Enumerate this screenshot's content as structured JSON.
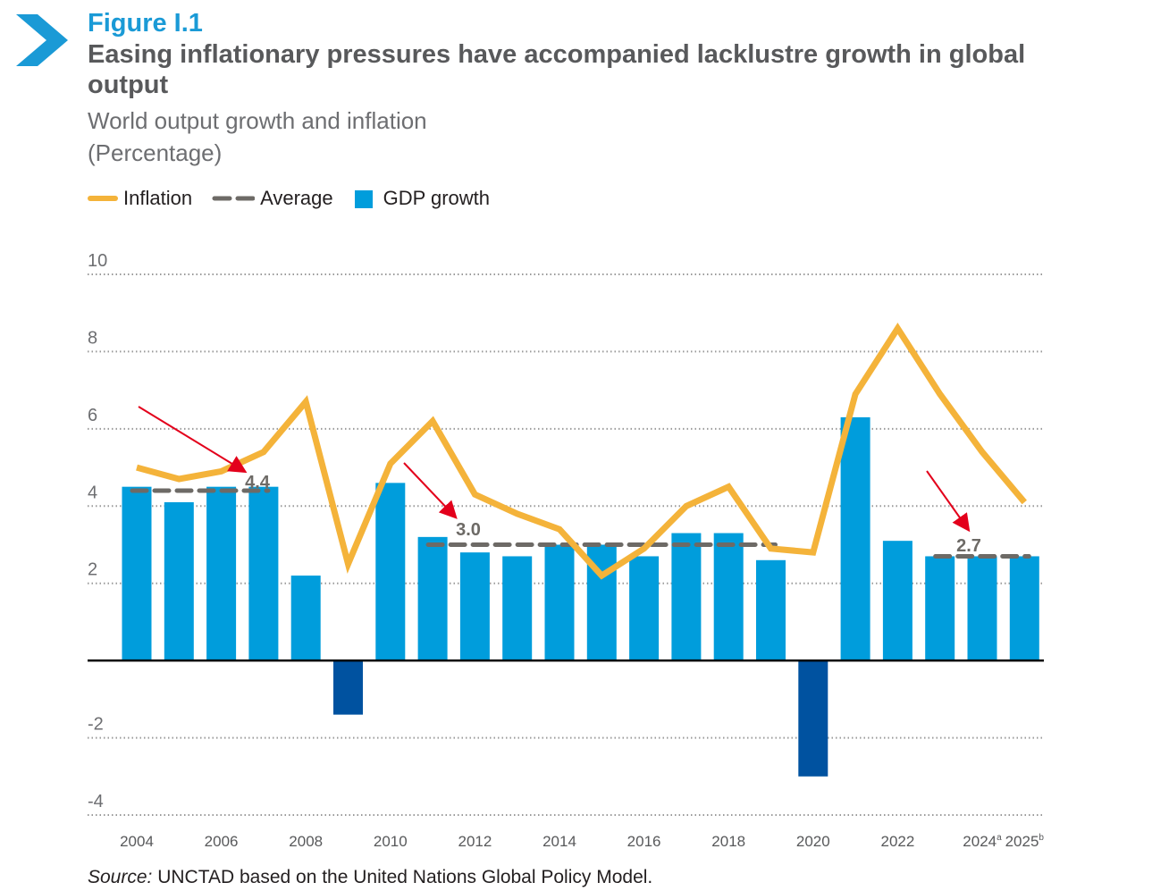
{
  "header": {
    "figure_label": "Figure I.1",
    "title": "Easing inflationary pressures have accompanied lacklustre growth in global output",
    "subtitle": "World output growth and inflation",
    "unit": "(Percentage)"
  },
  "colors": {
    "gdp_bar": "#009ddc",
    "gdp_bar_negative": "#0052a0",
    "inflation_line": "#f4b33a",
    "average_line": "#6d6a66",
    "arrow": "#e3001b",
    "accent": "#1a9ad6",
    "axis": "#000000",
    "grid": "#9a9a9a"
  },
  "source": {
    "label": "Source:",
    "text": " UNCTAD based on the United Nations Global Policy Model."
  },
  "chart_data": {
    "type": "bar",
    "categories": [
      "2004",
      "2005",
      "2006",
      "2007",
      "2008",
      "2009",
      "2010",
      "2011",
      "2012",
      "2013",
      "2014",
      "2015",
      "2016",
      "2017",
      "2018",
      "2019",
      "2020",
      "2021",
      "2022",
      "2023",
      "2024",
      "2025"
    ],
    "x_tick_labels": [
      {
        "category": "2004",
        "label": "2004"
      },
      {
        "category": "2006",
        "label": "2006"
      },
      {
        "category": "2008",
        "label": "2008"
      },
      {
        "category": "2010",
        "label": "2010"
      },
      {
        "category": "2012",
        "label": "2012"
      },
      {
        "category": "2014",
        "label": "2014"
      },
      {
        "category": "2016",
        "label": "2016"
      },
      {
        "category": "2018",
        "label": "2018"
      },
      {
        "category": "2020",
        "label": "2020"
      },
      {
        "category": "2022",
        "label": "2022"
      },
      {
        "category": "2024",
        "label": "2024",
        "sup": "a"
      },
      {
        "category": "2025",
        "label": "2025",
        "sup": "b"
      }
    ],
    "series": [
      {
        "name": "GDP growth",
        "type": "bar",
        "values": [
          4.5,
          4.1,
          4.5,
          4.5,
          2.2,
          -1.4,
          4.6,
          3.2,
          2.8,
          2.7,
          3.0,
          3.0,
          2.7,
          3.3,
          3.3,
          2.6,
          -3.0,
          6.3,
          3.1,
          2.7,
          2.7,
          2.7
        ]
      },
      {
        "name": "Inflation",
        "type": "line",
        "values": [
          5.0,
          4.7,
          4.9,
          5.4,
          6.7,
          2.5,
          5.1,
          6.2,
          4.3,
          3.8,
          3.4,
          2.2,
          2.9,
          4.0,
          4.5,
          2.9,
          2.8,
          6.9,
          8.6,
          6.9,
          5.4,
          4.1
        ]
      },
      {
        "name": "Average",
        "type": "dashed-segments",
        "segments": [
          {
            "start": "2004",
            "end": "2007",
            "value": 4.4,
            "label": "4.4"
          },
          {
            "start": "2011",
            "end": "2019",
            "value": 3.0,
            "label": "3.0"
          },
          {
            "start": "2023",
            "end": "2025",
            "value": 2.7,
            "label": "2.7"
          }
        ]
      }
    ],
    "y_ticks": [
      "10",
      "8",
      "6",
      "4",
      "2",
      "-2",
      "-4"
    ],
    "ylim": [
      -4,
      10
    ],
    "grid": true,
    "legend_placement": "top-left"
  }
}
